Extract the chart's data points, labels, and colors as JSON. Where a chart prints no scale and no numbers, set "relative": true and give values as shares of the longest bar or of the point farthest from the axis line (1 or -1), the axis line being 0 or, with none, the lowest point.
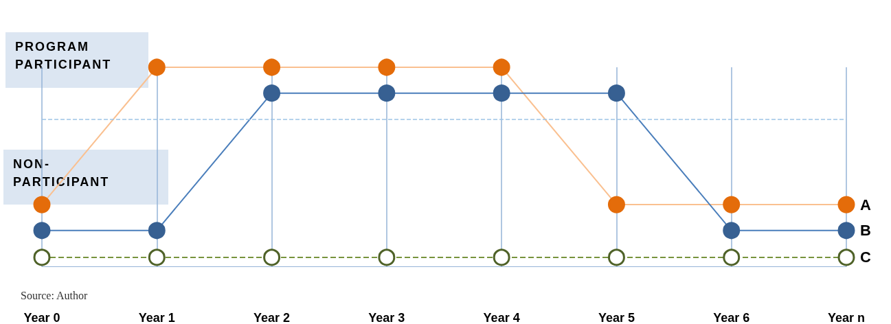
{
  "chart_data": {
    "type": "line",
    "relative": true,
    "categories": [
      "Year 0",
      "Year 1",
      "Year 2",
      "Year 3",
      "Year 4",
      "Year 5",
      "Year 6",
      "Year n"
    ],
    "series": [
      {
        "name": "A",
        "color": "#e46c0a",
        "values": [
          0.31,
          1,
          1,
          1,
          1,
          0.31,
          0.31,
          0.31
        ]
      },
      {
        "name": "B",
        "color": "#376092",
        "values": [
          0.18,
          0.18,
          0.87,
          0.87,
          0.87,
          0.87,
          0.18,
          0.18
        ]
      },
      {
        "name": "C",
        "color": "#4f6228",
        "values": [
          0.045,
          0.045,
          0.045,
          0.045,
          0.045,
          0.045,
          0.045,
          0.045
        ],
        "line_style": "dashed",
        "marker": "circle"
      }
    ],
    "marker": "circle",
    "line_style": "solid",
    "grid": "x",
    "legend": false,
    "ref_lines": [
      {
        "axis": "y",
        "value": 0.74,
        "color": "#9dc3e6",
        "line_style": "dashed"
      }
    ],
    "annotations": [
      "PROGRAM PARTICIPANT",
      "NON-PARTICIPANT",
      "Source: Author"
    ]
  }
}
